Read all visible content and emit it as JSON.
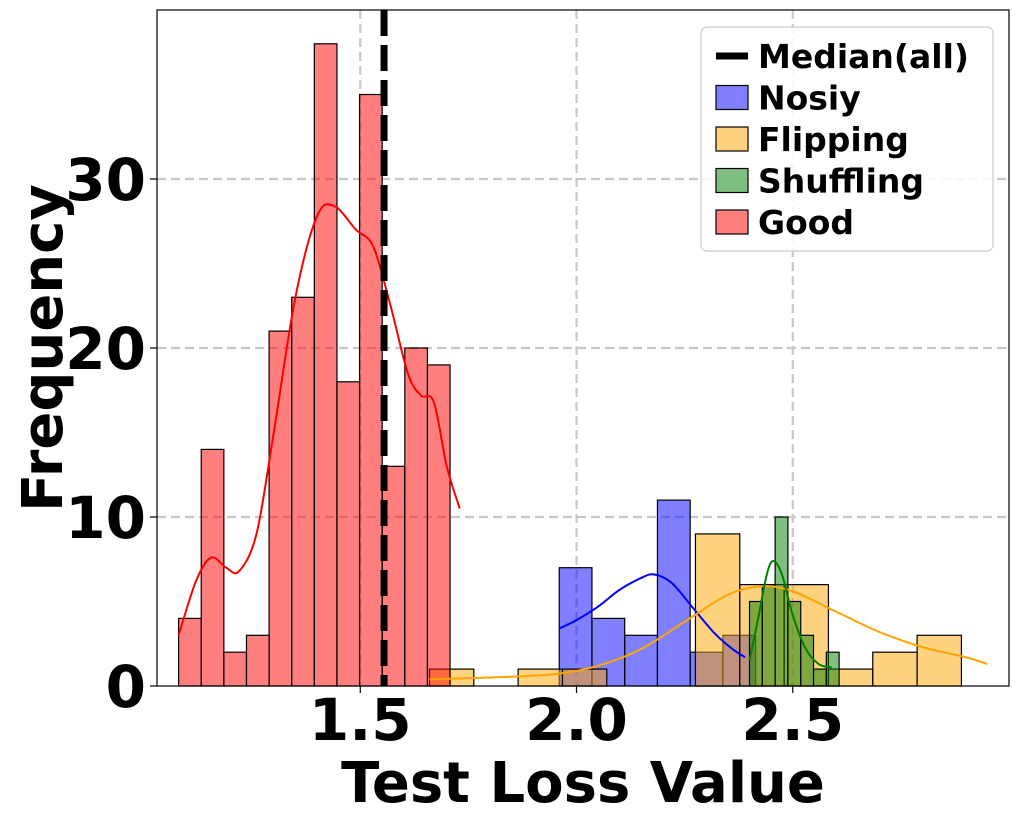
{
  "chart_data": {
    "type": "histogram",
    "title": "",
    "xlabel": "Test Loss Value",
    "ylabel": "Frequency",
    "xlim": [
      1.03,
      3.0
    ],
    "ylim": [
      0,
      40
    ],
    "xticks": [
      1.5,
      2.0,
      2.5
    ],
    "xtick_labels": [
      "1.5",
      "2.0",
      "2.5"
    ],
    "yticks": [
      0,
      10,
      20,
      30
    ],
    "ytick_labels": [
      "0",
      "10",
      "20",
      "30"
    ],
    "grid": true,
    "legend_position": "top-right",
    "median_line": {
      "name": "Median(all)",
      "x": 1.555,
      "color": "#000000"
    },
    "series": [
      {
        "name": "Nosiy",
        "color": "#0000ff",
        "bin_start": 1.96,
        "bin_width": 0.0757,
        "counts": [
          7,
          4,
          3,
          11,
          2,
          3
        ],
        "kde": [
          [
            1.96,
            3.4
          ],
          [
            2.0,
            3.9
          ],
          [
            2.05,
            4.7
          ],
          [
            2.1,
            5.7
          ],
          [
            2.15,
            6.4
          ],
          [
            2.18,
            6.6
          ],
          [
            2.22,
            6.1
          ],
          [
            2.27,
            4.6
          ],
          [
            2.32,
            3.1
          ],
          [
            2.36,
            2.2
          ],
          [
            2.39,
            1.7
          ]
        ]
      },
      {
        "name": "Flipping",
        "color": "#ffa500",
        "bin_start": 1.66,
        "bin_width": 0.1025,
        "counts": [
          1,
          0,
          1,
          1,
          0,
          0,
          9,
          6,
          6,
          1,
          2,
          3
        ],
        "kde": [
          [
            1.66,
            0.4
          ],
          [
            1.8,
            0.5
          ],
          [
            1.95,
            0.7
          ],
          [
            2.05,
            1.2
          ],
          [
            2.15,
            2.2
          ],
          [
            2.25,
            3.8
          ],
          [
            2.35,
            5.4
          ],
          [
            2.43,
            5.9
          ],
          [
            2.5,
            5.6
          ],
          [
            2.6,
            4.4
          ],
          [
            2.7,
            3.2
          ],
          [
            2.8,
            2.3
          ],
          [
            2.9,
            1.7
          ],
          [
            2.95,
            1.3
          ]
        ]
      },
      {
        "name": "Shuffling",
        "color": "#008000",
        "bin_start": 2.4,
        "bin_width": 0.0296,
        "counts": [
          5,
          6,
          10,
          5,
          3,
          1,
          2
        ],
        "kde": [
          [
            2.4,
            1.5
          ],
          [
            2.42,
            4.0
          ],
          [
            2.44,
            6.6
          ],
          [
            2.455,
            7.4
          ],
          [
            2.475,
            6.6
          ],
          [
            2.5,
            4.2
          ],
          [
            2.53,
            2.2
          ],
          [
            2.56,
            1.3
          ],
          [
            2.59,
            1.1
          ]
        ]
      },
      {
        "name": "Good",
        "color": "#ff0000",
        "bin_start": 1.08,
        "bin_width": 0.0523,
        "counts": [
          4,
          14,
          2,
          3,
          21,
          23,
          38,
          18,
          35,
          13,
          20,
          19
        ],
        "kde": [
          [
            1.08,
            3.0
          ],
          [
            1.12,
            6.2
          ],
          [
            1.155,
            7.6
          ],
          [
            1.19,
            7.0
          ],
          [
            1.22,
            6.8
          ],
          [
            1.26,
            9.0
          ],
          [
            1.3,
            15.0
          ],
          [
            1.35,
            23.0
          ],
          [
            1.4,
            27.8
          ],
          [
            1.44,
            28.4
          ],
          [
            1.49,
            27.0
          ],
          [
            1.53,
            26.0
          ],
          [
            1.57,
            22.5
          ],
          [
            1.61,
            18.5
          ],
          [
            1.64,
            17.2
          ],
          [
            1.67,
            16.8
          ],
          [
            1.7,
            13.0
          ],
          [
            1.73,
            10.5
          ]
        ]
      }
    ]
  }
}
